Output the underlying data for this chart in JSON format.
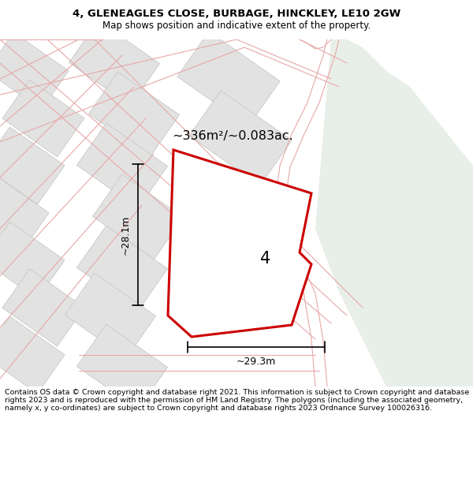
{
  "title_line1": "4, GLENEAGLES CLOSE, BURBAGE, HINCKLEY, LE10 2GW",
  "title_line2": "Map shows position and indicative extent of the property.",
  "footer_text": "Contains OS data © Crown copyright and database right 2021. This information is subject to Crown copyright and database rights 2023 and is reproduced with the permission of HM Land Registry. The polygons (including the associated geometry, namely x, y co-ordinates) are subject to Crown copyright and database rights 2023 Ordnance Survey 100026316.",
  "area_label": "~336m²/~0.083ac.",
  "plot_number": "4",
  "dim_vertical": "~28.1m",
  "dim_horizontal": "~29.3m",
  "bg_color": "#f0f0f0",
  "green_area_color": "#e8efe8",
  "highlight_stroke_color": "#cc0000",
  "highlight_lw": 2.2,
  "road_lw": 0.8,
  "fig_width": 6.0,
  "fig_height": 6.25,
  "block_color": "#e2e2e2",
  "block_edge_color": "#c8c8c8",
  "road_color": "#e8a8a8",
  "title_fontsize": 9.5,
  "subtitle_fontsize": 8.5,
  "footer_fontsize": 6.8
}
